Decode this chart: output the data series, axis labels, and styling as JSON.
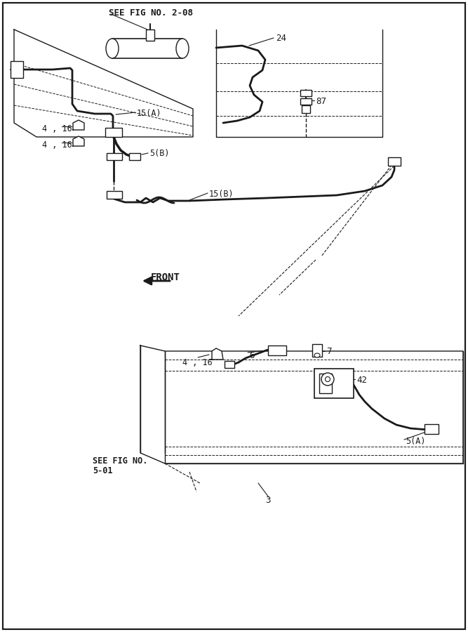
{
  "bg_color": "#ffffff",
  "line_color": "#1a1a1a",
  "labels": {
    "see_fig_2_08": "SEE FIG NO. 2-08",
    "see_fig_5_01_line1": "SEE FIG NO.",
    "see_fig_5_01_line2": "5-01",
    "front": "FRONT",
    "num_24": "24",
    "num_87": "87",
    "num_15A": "15(A)",
    "num_15B": "15(B)",
    "num_5B": "5(B)",
    "num_5A": "5(A)",
    "num_4_16": "4 , 16",
    "num_6": "6",
    "num_7": "7",
    "num_42": "42",
    "num_3": "3"
  },
  "fig_w": 6.67,
  "fig_h": 9.0
}
